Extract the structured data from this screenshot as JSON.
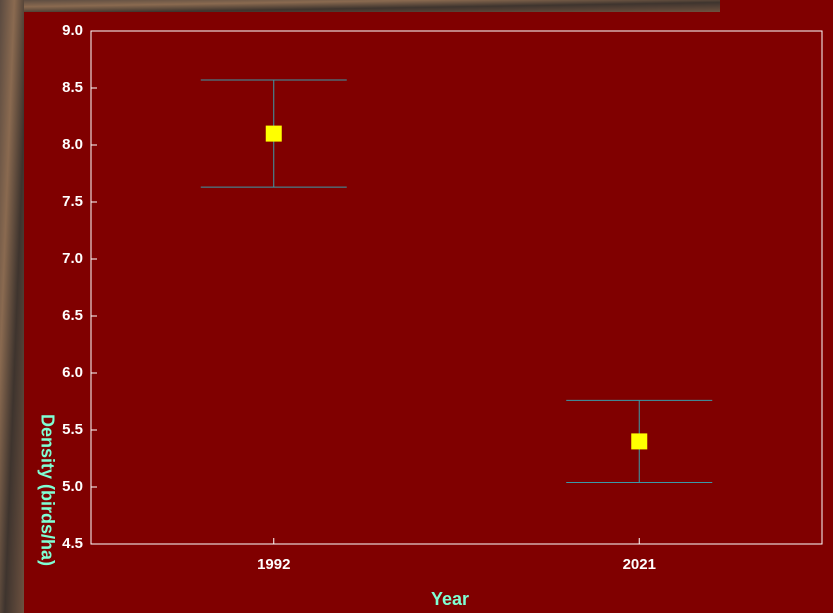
{
  "chart_data": {
    "type": "errorbar",
    "x_label": "Year",
    "y_label": "Density (birds/ha)",
    "categories": [
      "1992",
      "2021"
    ],
    "series": [
      {
        "color": "#ffff00",
        "error_color": "#3a9aa8",
        "values": [
          8.1,
          5.4
        ],
        "errors": [
          0.47,
          0.36
        ]
      }
    ],
    "ylim": [
      4.5,
      9.0
    ],
    "yticks": [
      {
        "value": 4.5,
        "label": "4.5"
      },
      {
        "value": 5.0,
        "label": "5.0"
      },
      {
        "value": 5.5,
        "label": "5.5"
      },
      {
        "value": 6.0,
        "label": "6.0"
      },
      {
        "value": 6.5,
        "label": "6.5"
      },
      {
        "value": 7.0,
        "label": "7.0"
      },
      {
        "value": 7.5,
        "label": "7.5"
      },
      {
        "value": 8.0,
        "label": "8.0"
      },
      {
        "value": 8.5,
        "label": "8.5"
      },
      {
        "value": 9.0,
        "label": "9.0"
      }
    ]
  }
}
